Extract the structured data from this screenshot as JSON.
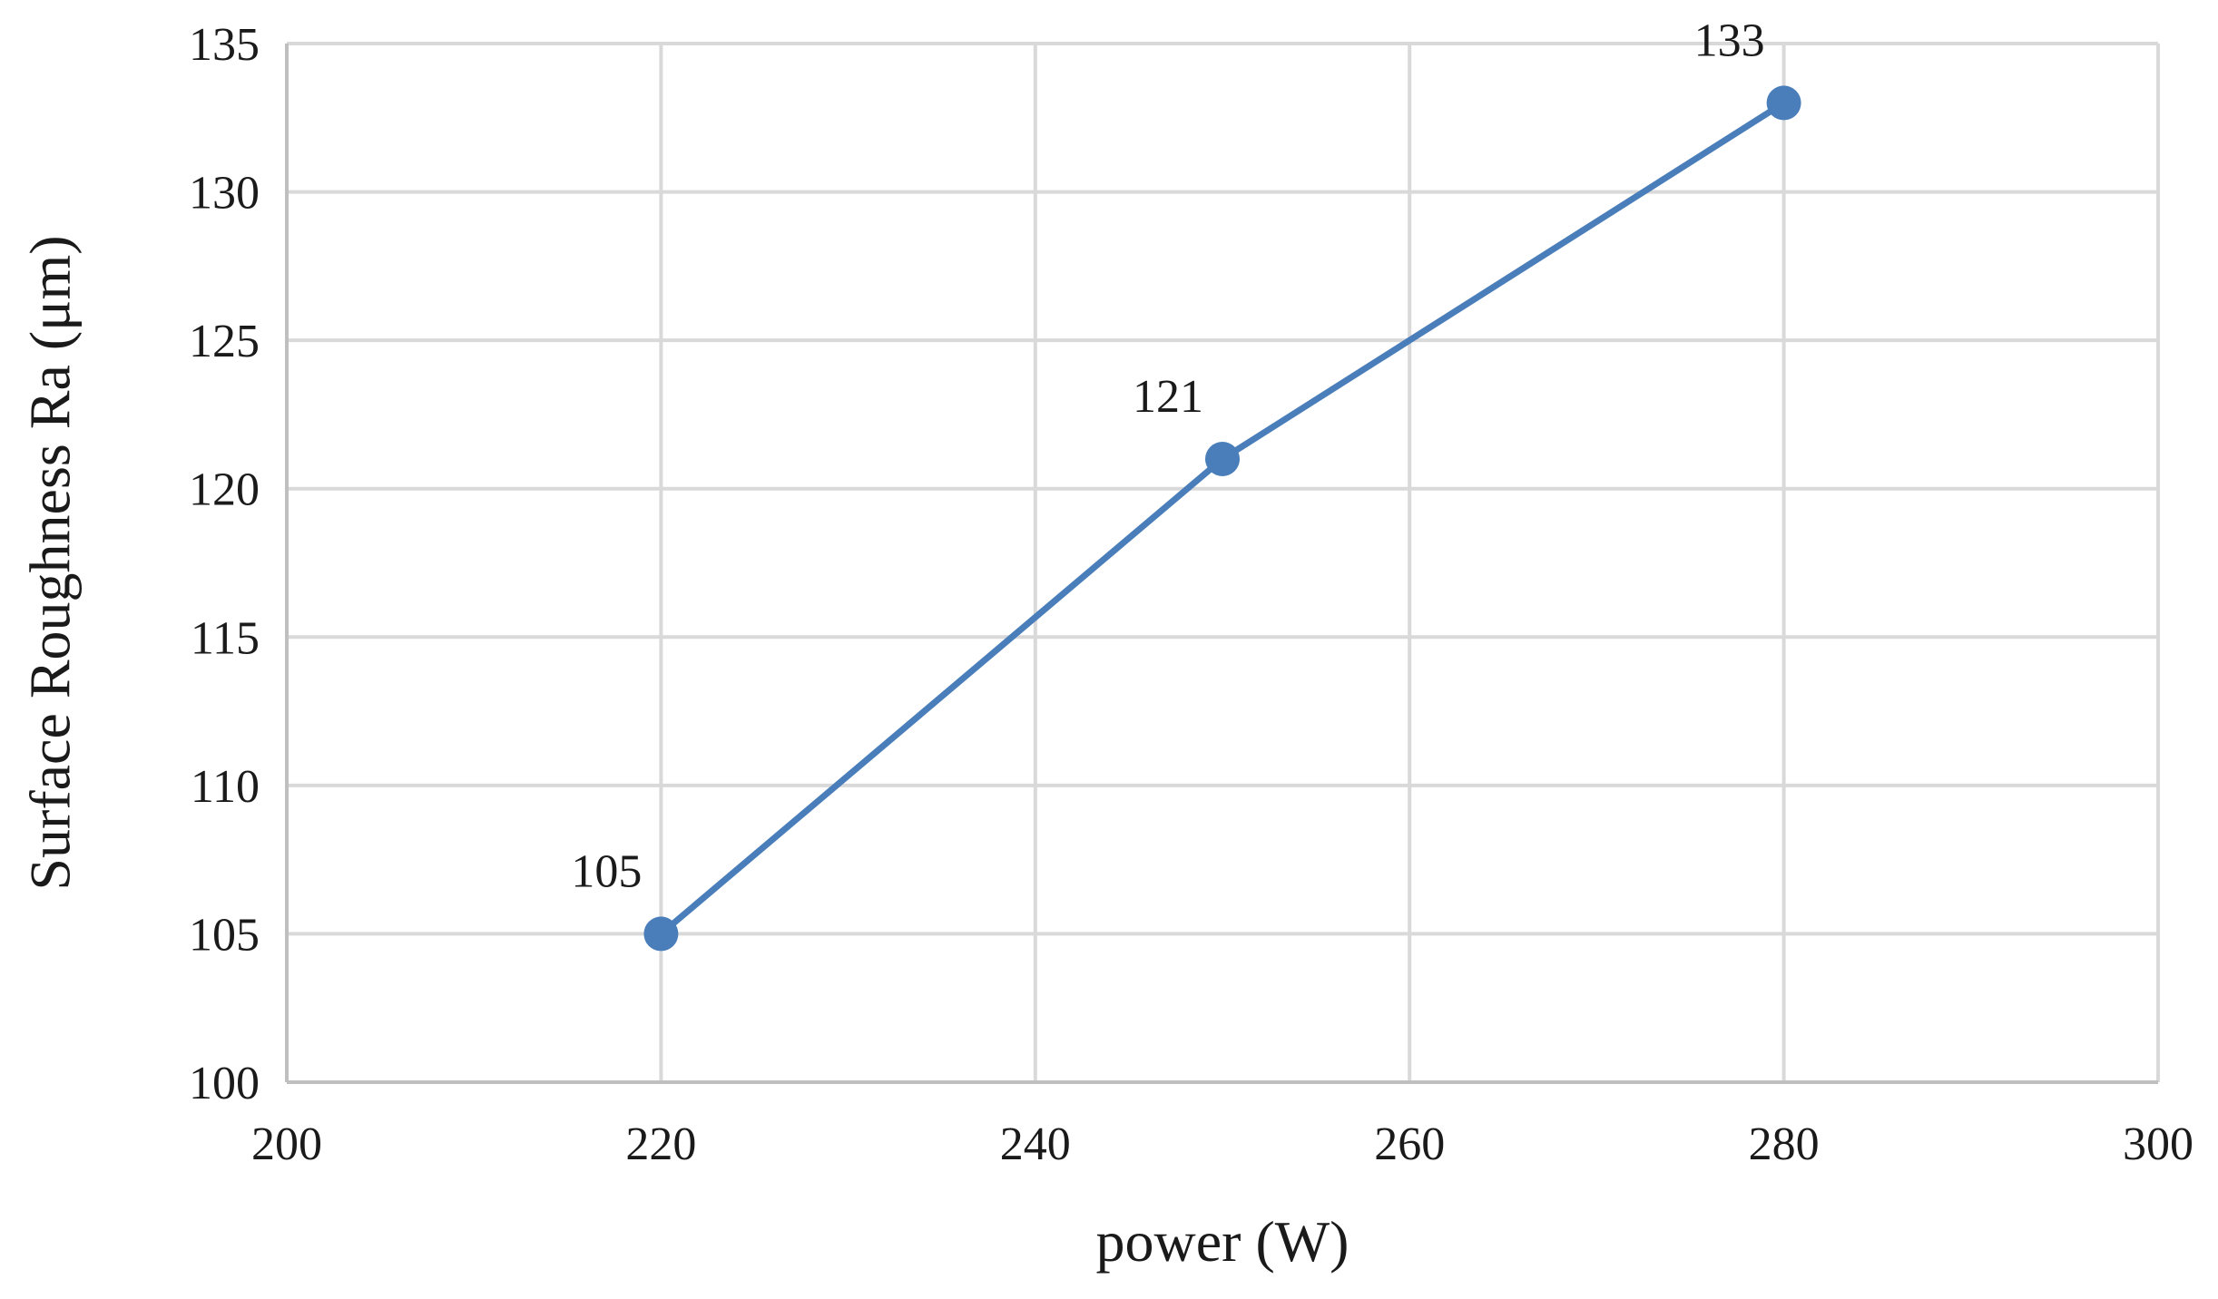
{
  "chart_data": {
    "type": "line",
    "title": "",
    "xlabel": "power (W)",
    "ylabel": "Surface Roughness Ra (μm)",
    "xlim": [
      200,
      300
    ],
    "ylim": [
      100,
      135
    ],
    "x_ticks": [
      200,
      220,
      240,
      260,
      280,
      300
    ],
    "y_ticks": [
      100,
      105,
      110,
      115,
      120,
      125,
      130,
      135
    ],
    "grid": true,
    "legend": "none",
    "series": [
      {
        "color": "#4a7ebb",
        "x": [
          220,
          250,
          280
        ],
        "y": [
          105,
          121,
          133
        ],
        "data_labels": [
          "105",
          "121",
          "133"
        ]
      }
    ]
  }
}
